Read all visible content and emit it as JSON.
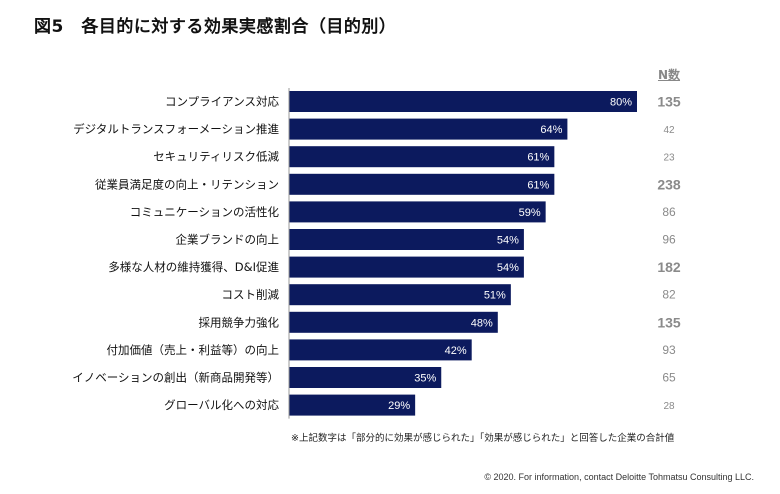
{
  "chart_data": {
    "type": "bar",
    "orientation": "horizontal",
    "title": "図5　各目的に対する効果実感割合（目的別）",
    "categories": [
      "コンプライアンス対応",
      "デジタルトランスフォーメーション推進",
      "セキュリティリスク低減",
      "従業員満足度の向上・リテンション",
      "コミュニケーションの活性化",
      "企業ブランドの向上",
      "多様な人材の維持獲得、D&I促進",
      "コスト削減",
      "採用競争力強化",
      "付加価値（売上・利益等）の向上",
      "イノベーションの創出（新商品開発等）",
      "グローバル化への対応"
    ],
    "values": [
      80,
      64,
      61,
      61,
      59,
      54,
      54,
      51,
      48,
      42,
      35,
      29
    ],
    "value_labels": [
      "80%",
      "64%",
      "61%",
      "61%",
      "59%",
      "54%",
      "54%",
      "51%",
      "48%",
      "42%",
      "35%",
      "29%"
    ],
    "n_header": "N数",
    "n_values": [
      "135",
      "42",
      "23",
      "238",
      "86",
      "96",
      "182",
      "82",
      "135",
      "93",
      "65",
      "28"
    ],
    "n_emphasis": [
      "large",
      "small",
      "small",
      "large",
      "medium",
      "medium",
      "large",
      "medium",
      "large",
      "medium",
      "medium",
      "small"
    ],
    "xlim": [
      0,
      80
    ],
    "grid": false,
    "bar_color": "#0c1a5e",
    "n_color": "#8a8a8a",
    "note": "※上記数字は「部分的に効果が感じられた」「効果が感じられた」と回答した企業の合計値"
  },
  "footer": {
    "copyright": "© 2020. For information, contact Deloitte Tohmatsu Consulting LLC."
  }
}
